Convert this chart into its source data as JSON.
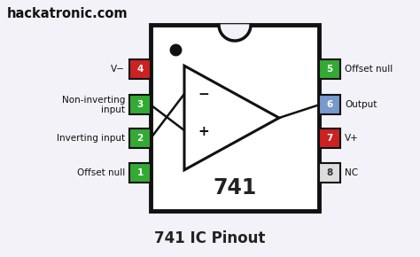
{
  "title": "741 IC Pinout",
  "watermark": "hackatronic.com",
  "ic_label": "741",
  "bg_color": "#f2f2f8",
  "ic_bg": "#ffffff",
  "ic_border": "#111111",
  "left_pins": [
    {
      "num": 1,
      "label": "Offset null",
      "label2": "",
      "color": "#33aa33",
      "yf": 0.795
    },
    {
      "num": 2,
      "label": "Inverting input",
      "label2": "",
      "color": "#33aa33",
      "yf": 0.61
    },
    {
      "num": 3,
      "label": "Non-inverting",
      "label2": "input",
      "color": "#33aa33",
      "yf": 0.43
    },
    {
      "num": 4,
      "label": "V−",
      "label2": "",
      "color": "#cc2222",
      "yf": 0.24
    }
  ],
  "right_pins": [
    {
      "num": 8,
      "label": "NC",
      "color": "#dddddd",
      "yf": 0.795
    },
    {
      "num": 7,
      "label": "V+",
      "color": "#cc2222",
      "yf": 0.61
    },
    {
      "num": 6,
      "label": "Output",
      "color": "#7799cc",
      "yf": 0.43
    },
    {
      "num": 5,
      "label": "Offset null",
      "color": "#33aa33",
      "yf": 0.24
    }
  ]
}
